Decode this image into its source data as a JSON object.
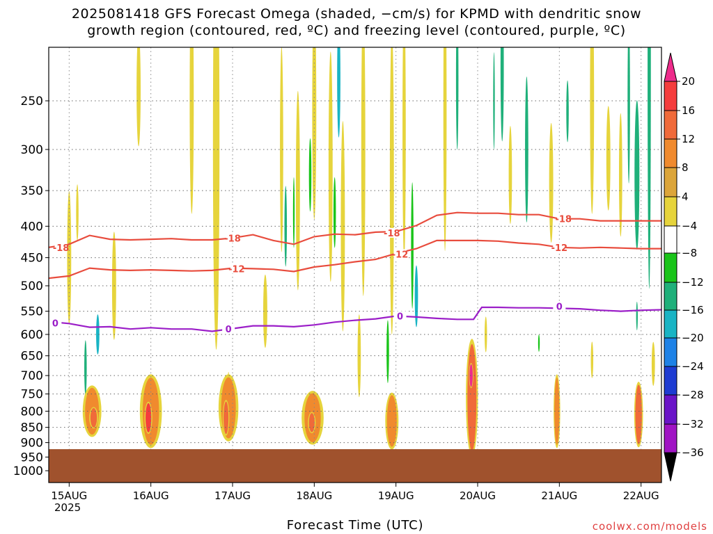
{
  "title": {
    "line1": "2025081418 GFS Forecast Omega (shaded, −cm/s) for KPMD with dendritic snow",
    "line2": "growth region (contoured, red, ºC) and freezing level (contoured, purple, ºC)"
  },
  "credit": "coolwx.com/models",
  "chart_data": {
    "type": "heatmap",
    "xlabel": "Forecast Time (UTC)",
    "x_ticks": [
      "15AUG",
      "16AUG",
      "17AUG",
      "18AUG",
      "19AUG",
      "20AUG",
      "21AUG",
      "22AUG"
    ],
    "x_year": "2025",
    "y_ticks": [
      250,
      300,
      350,
      400,
      450,
      500,
      550,
      600,
      650,
      700,
      750,
      800,
      850,
      900,
      950,
      1000
    ],
    "ylim": [
      200,
      1050
    ],
    "x_range_days": [
      14.75,
      22.25
    ],
    "grid": true,
    "colorbar": {
      "ticks": [
        "20",
        "16",
        "12",
        "8",
        "4",
        "−4",
        "−8",
        "−12",
        "−16",
        "−20",
        "−24",
        "−28",
        "−32",
        "−36"
      ],
      "colors": [
        "#ee2b8b",
        "#f53d3d",
        "#f06a3a",
        "#f08a2e",
        "#dca53a",
        "#e6d43c",
        "#ffffff",
        "#19c419",
        "#1fb07a",
        "#19b4c4",
        "#1e82e6",
        "#1e3cd2",
        "#6a14c8",
        "#a014c4",
        "#a8a8a8",
        "#000000"
      ],
      "units": "−cm/s"
    },
    "series": [
      {
        "label": "-18",
        "color": "#e84c3d",
        "points": [
          [
            14.75,
            433
          ],
          [
            15.0,
            428
          ],
          [
            15.25,
            414
          ],
          [
            15.5,
            420
          ],
          [
            15.75,
            421
          ],
          [
            16.0,
            420
          ],
          [
            16.25,
            419
          ],
          [
            16.5,
            421
          ],
          [
            16.75,
            421
          ],
          [
            17.0,
            418
          ],
          [
            17.25,
            413
          ],
          [
            17.5,
            422
          ],
          [
            17.75,
            428
          ],
          [
            18.0,
            416
          ],
          [
            18.25,
            412
          ],
          [
            18.5,
            413
          ],
          [
            18.75,
            409
          ],
          [
            19.0,
            408
          ],
          [
            19.25,
            399
          ],
          [
            19.5,
            384
          ],
          [
            19.75,
            380
          ],
          [
            20.0,
            381
          ],
          [
            20.25,
            381
          ],
          [
            20.5,
            383
          ],
          [
            20.75,
            383
          ],
          [
            21.0,
            389
          ],
          [
            21.25,
            389
          ],
          [
            21.5,
            392
          ],
          [
            21.75,
            392
          ],
          [
            22.0,
            392
          ],
          [
            22.25,
            392
          ]
        ],
        "labels": [
          [
            14.9,
            433
          ],
          [
            17.0,
            418
          ],
          [
            18.95,
            410
          ],
          [
            21.05,
            389
          ]
        ]
      },
      {
        "label": "-12",
        "color": "#e84c3d",
        "points": [
          [
            14.75,
            486
          ],
          [
            15.0,
            482
          ],
          [
            15.25,
            468
          ],
          [
            15.5,
            471
          ],
          [
            15.75,
            472
          ],
          [
            16.0,
            471
          ],
          [
            16.25,
            472
          ],
          [
            16.5,
            473
          ],
          [
            16.75,
            472
          ],
          [
            17.0,
            468
          ],
          [
            17.25,
            469
          ],
          [
            17.5,
            470
          ],
          [
            17.75,
            474
          ],
          [
            18.0,
            466
          ],
          [
            18.25,
            462
          ],
          [
            18.5,
            457
          ],
          [
            18.75,
            453
          ],
          [
            19.0,
            443
          ],
          [
            19.25,
            435
          ],
          [
            19.5,
            422
          ],
          [
            19.75,
            422
          ],
          [
            20.0,
            422
          ],
          [
            20.25,
            423
          ],
          [
            20.5,
            426
          ],
          [
            20.75,
            428
          ],
          [
            21.0,
            433
          ],
          [
            21.25,
            434
          ],
          [
            21.5,
            433
          ],
          [
            21.75,
            434
          ],
          [
            22.0,
            435
          ],
          [
            22.25,
            435
          ]
        ],
        "labels": [
          [
            17.05,
            469
          ],
          [
            19.05,
            444
          ],
          [
            21.0,
            433
          ]
        ]
      },
      {
        "label": "0",
        "color": "#9b1ec8",
        "points": [
          [
            14.75,
            572
          ],
          [
            15.0,
            576
          ],
          [
            15.25,
            584
          ],
          [
            15.5,
            583
          ],
          [
            15.75,
            588
          ],
          [
            16.0,
            585
          ],
          [
            16.25,
            588
          ],
          [
            16.5,
            588
          ],
          [
            16.75,
            593
          ],
          [
            17.0,
            587
          ],
          [
            17.25,
            581
          ],
          [
            17.5,
            581
          ],
          [
            17.75,
            583
          ],
          [
            18.0,
            579
          ],
          [
            18.25,
            573
          ],
          [
            18.5,
            569
          ],
          [
            18.75,
            566
          ],
          [
            19.0,
            560
          ],
          [
            19.25,
            562
          ],
          [
            19.5,
            565
          ],
          [
            19.75,
            567
          ],
          [
            19.95,
            567
          ],
          [
            20.05,
            542
          ],
          [
            20.25,
            542
          ],
          [
            20.5,
            543
          ],
          [
            20.75,
            543
          ],
          [
            21.0,
            544
          ],
          [
            21.25,
            545
          ],
          [
            21.5,
            548
          ],
          [
            21.75,
            550
          ],
          [
            22.0,
            548
          ],
          [
            22.25,
            547
          ]
        ],
        "labels": [
          [
            14.83,
            575
          ],
          [
            16.95,
            588
          ],
          [
            19.05,
            560
          ],
          [
            21.0,
            540
          ]
        ]
      }
    ],
    "shaded_regions": [
      {
        "x": 15.28,
        "p": 800,
        "w": 0.17,
        "h": 140,
        "v": 10
      },
      {
        "x": 15.3,
        "p": 820,
        "w": 0.08,
        "h": 60,
        "v": 14
      },
      {
        "x": 16.0,
        "p": 800,
        "w": 0.2,
        "h": 200,
        "v": 9
      },
      {
        "x": 15.97,
        "p": 820,
        "w": 0.07,
        "h": 90,
        "v": 16
      },
      {
        "x": 16.95,
        "p": 790,
        "w": 0.18,
        "h": 180,
        "v": 9
      },
      {
        "x": 16.92,
        "p": 820,
        "w": 0.06,
        "h": 100,
        "v": 14
      },
      {
        "x": 17.98,
        "p": 820,
        "w": 0.2,
        "h": 150,
        "v": 9
      },
      {
        "x": 17.97,
        "p": 835,
        "w": 0.07,
        "h": 60,
        "v": 13
      },
      {
        "x": 18.95,
        "p": 830,
        "w": 0.12,
        "h": 160,
        "v": 9
      },
      {
        "x": 19.93,
        "p": 760,
        "w": 0.11,
        "h": 300,
        "v": 13
      },
      {
        "x": 19.92,
        "p": 700,
        "w": 0.04,
        "h": 60,
        "v": 20
      },
      {
        "x": 20.97,
        "p": 800,
        "w": 0.06,
        "h": 200,
        "v": 11
      },
      {
        "x": 21.97,
        "p": 810,
        "w": 0.08,
        "h": 180,
        "v": 13
      },
      {
        "x": 15.35,
        "p": 600,
        "w": 0.04,
        "h": 90,
        "v": -13
      },
      {
        "x": 16.8,
        "p": 290,
        "w": 0.08,
        "h": 380,
        "v": 6
      },
      {
        "x": 18.3,
        "p": 230,
        "w": 0.04,
        "h": 100,
        "v": -14
      },
      {
        "x": 19.25,
        "p": 520,
        "w": 0.04,
        "h": 120,
        "v": -13
      },
      {
        "x": 20.3,
        "p": 220,
        "w": 0.04,
        "h": 120,
        "v": -9
      },
      {
        "x": 21.95,
        "p": 330,
        "w": 0.06,
        "h": 180,
        "v": -9
      }
    ]
  }
}
